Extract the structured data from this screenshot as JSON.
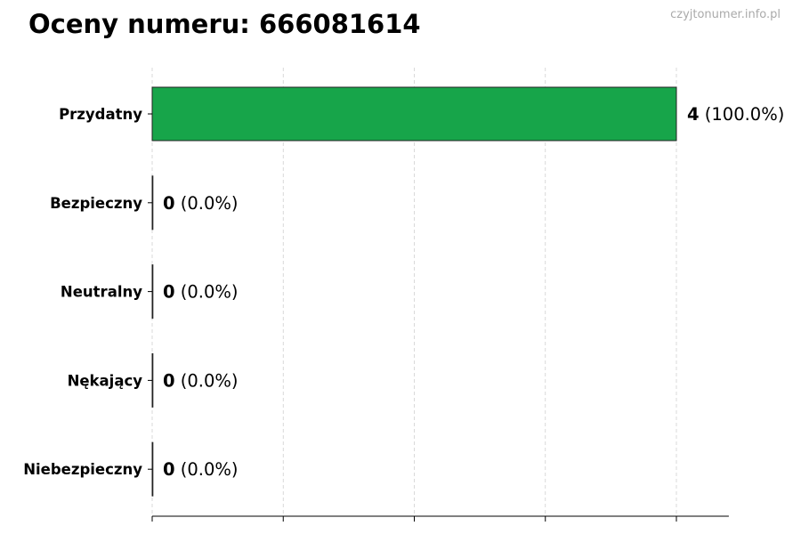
{
  "title": "Oceny numeru: 666081614",
  "watermark": "czyjtonumer.info.pl",
  "chart_data": {
    "type": "bar",
    "orientation": "horizontal",
    "title": "Oceny numeru: 666081614",
    "categories": [
      "Przydatny",
      "Bezpieczny",
      "Neutralny",
      "Nękający",
      "Niebezpieczny"
    ],
    "values": [
      4,
      0,
      0,
      0,
      0
    ],
    "percent_labels": [
      "(100.0%)",
      "(0.0%)",
      "(0.0%)",
      "(0.0%)",
      "(0.0%)"
    ],
    "colors": [
      "#17a54a",
      "#17a54a",
      "#17a54a",
      "#17a54a",
      "#17a54a"
    ],
    "xlim": [
      0,
      4.4
    ],
    "xticks": [
      0,
      1,
      2,
      3,
      4
    ],
    "xtick_labels_shown": false,
    "grid": "vertical dashed",
    "xlabel": "",
    "ylabel": ""
  }
}
